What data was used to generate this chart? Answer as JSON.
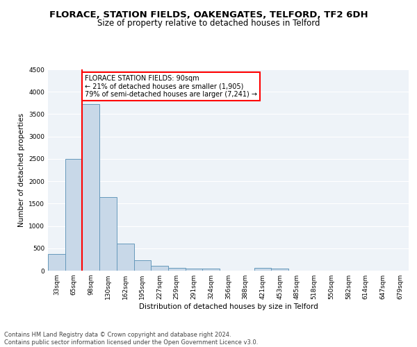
{
  "title": "FLORACE, STATION FIELDS, OAKENGATES, TELFORD, TF2 6DH",
  "subtitle": "Size of property relative to detached houses in Telford",
  "xlabel": "Distribution of detached houses by size in Telford",
  "ylabel": "Number of detached properties",
  "categories": [
    "33sqm",
    "65sqm",
    "98sqm",
    "130sqm",
    "162sqm",
    "195sqm",
    "227sqm",
    "259sqm",
    "291sqm",
    "324sqm",
    "356sqm",
    "388sqm",
    "421sqm",
    "453sqm",
    "485sqm",
    "518sqm",
    "550sqm",
    "582sqm",
    "614sqm",
    "647sqm",
    "679sqm"
  ],
  "values": [
    375,
    2500,
    3720,
    1640,
    600,
    240,
    105,
    60,
    50,
    50,
    0,
    0,
    60,
    50,
    0,
    0,
    0,
    0,
    0,
    0,
    0
  ],
  "bar_color": "#c8d8e8",
  "bar_edge_color": "#6699bb",
  "red_line_index": 2,
  "annotation_text": "FLORACE STATION FIELDS: 90sqm\n← 21% of detached houses are smaller (1,905)\n79% of semi-detached houses are larger (7,241) →",
  "ylim": [
    0,
    4500
  ],
  "yticks": [
    0,
    500,
    1000,
    1500,
    2000,
    2500,
    3000,
    3500,
    4000,
    4500
  ],
  "footer_text": "Contains HM Land Registry data © Crown copyright and database right 2024.\nContains public sector information licensed under the Open Government Licence v3.0.",
  "bg_color": "#eef3f8",
  "grid_color": "white",
  "title_fontsize": 9.5,
  "subtitle_fontsize": 8.5,
  "axis_label_fontsize": 7.5,
  "tick_fontsize": 6.5,
  "footer_fontsize": 6.0,
  "annotation_fontsize": 7.0
}
